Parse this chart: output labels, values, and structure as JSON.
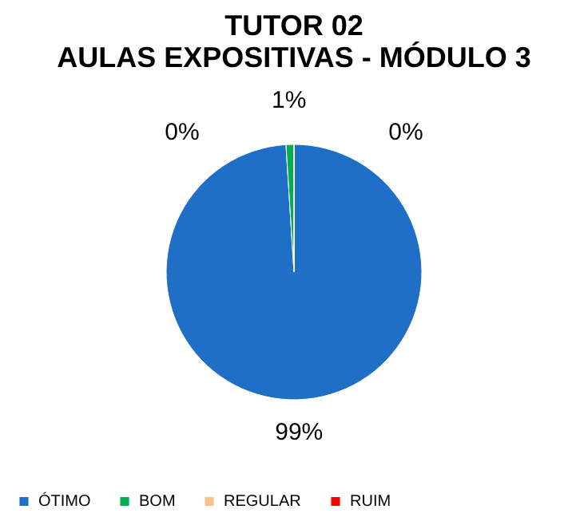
{
  "chart_data": {
    "type": "pie",
    "title": "TUTOR 02\nAULAS EXPOSITIVAS - MÓDULO 3",
    "categories": [
      "ÓTIMO",
      "BOM",
      "REGULAR",
      "RUIM"
    ],
    "values": [
      99,
      1,
      0,
      0
    ],
    "colors": [
      "#1f6fc6",
      "#00b050",
      "#fac090",
      "#ff0000"
    ],
    "value_labels": [
      "99%",
      "1%",
      "0%",
      "0%"
    ],
    "legend": "bottom"
  }
}
